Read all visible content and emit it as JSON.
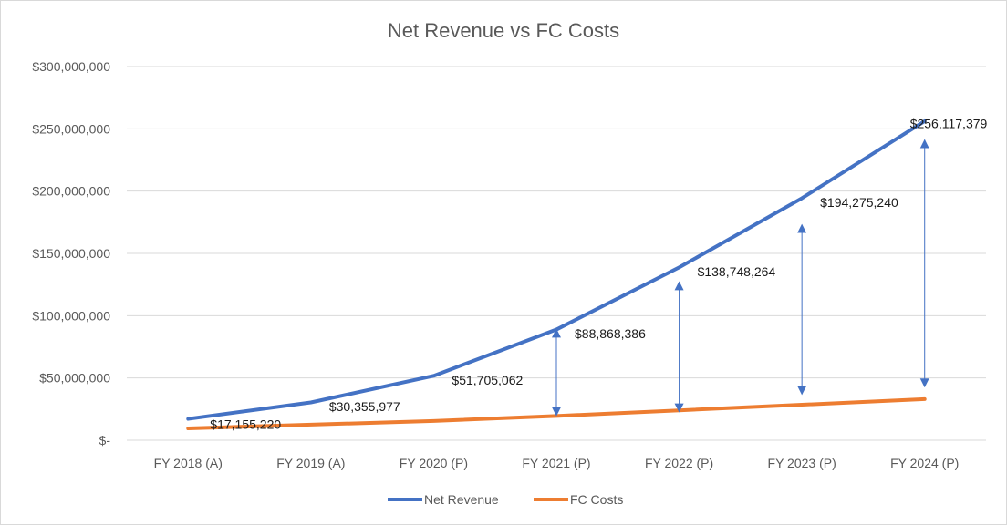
{
  "chart_data": {
    "type": "line",
    "title": "Net Revenue vs FC Costs",
    "categories": [
      "FY 2018 (A)",
      "FY 2019 (A)",
      "FY 2020 (P)",
      "FY 2021 (P)",
      "FY 2022 (P)",
      "FY 2023 (P)",
      "FY 2024 (P)"
    ],
    "y_ticks": [
      {
        "value": 0,
        "label": "$-"
      },
      {
        "value": 50000000,
        "label": "$50,000,000"
      },
      {
        "value": 100000000,
        "label": "$100,000,000"
      },
      {
        "value": 150000000,
        "label": "$150,000,000"
      },
      {
        "value": 200000000,
        "label": "$200,000,000"
      },
      {
        "value": 250000000,
        "label": "$250,000,000"
      },
      {
        "value": 300000000,
        "label": "$300,000,000"
      }
    ],
    "ylim": [
      0,
      300000000
    ],
    "grid": true,
    "legend_position": "bottom",
    "series": [
      {
        "name": "Net Revenue",
        "color": "#4472c4",
        "values": [
          17155220,
          30355977,
          51705062,
          88868386,
          138748264,
          194275240,
          256117379
        ],
        "labels": [
          "$17,155,220",
          "$30,355,977",
          "$51,705,062",
          "$88,868,386",
          "$138,748,264",
          "$194,275,240",
          "$256,117,379"
        ]
      },
      {
        "name": "FC Costs",
        "color": "#ed7d31",
        "values": [
          9500000,
          12500000,
          15500000,
          19500000,
          24000000,
          28500000,
          33000000
        ]
      }
    ],
    "gap_arrows": [
      {
        "category": "FY 2021 (P)",
        "from": 20000000,
        "to": 89000000
      },
      {
        "category": "FY 2022 (P)",
        "from": 23000000,
        "to": 127000000
      },
      {
        "category": "FY 2023 (P)",
        "from": 37000000,
        "to": 173000000
      },
      {
        "category": "FY 2024 (P)",
        "from": 43000000,
        "to": 241000000
      }
    ]
  }
}
